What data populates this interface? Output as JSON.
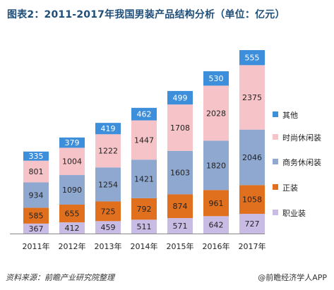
{
  "title": "图表2：2011-2017年我国男装产品结构分析（单位：亿元）",
  "footer": {
    "source": "资料来源：前瞻产业研究院整理",
    "brand": "@前瞻经济学人APP"
  },
  "colors": {
    "other": "#3d8fdc",
    "fashion_casual": "#f6c4c8",
    "business_casual": "#8fa8d0",
    "formal": "#e0701e",
    "workwear": "#c9bce4"
  },
  "chart_data": {
    "type": "bar",
    "stacked": true,
    "categories": [
      "2011年",
      "2012年",
      "2013年",
      "2014年",
      "2015年",
      "2016年",
      "2017年"
    ],
    "series": [
      {
        "name": "职业装",
        "key": "workwear",
        "values": [
          367,
          412,
          459,
          511,
          571,
          642,
          727
        ]
      },
      {
        "name": "正装",
        "key": "formal",
        "values": [
          585,
          655,
          725,
          792,
          874,
          961,
          1058
        ]
      },
      {
        "name": "商务休闲装",
        "key": "business_casual",
        "values": [
          934,
          1090,
          1254,
          1421,
          1603,
          1820,
          2046
        ]
      },
      {
        "name": "时尚休闲装",
        "key": "fashion_casual",
        "values": [
          801,
          1004,
          1222,
          1447,
          1708,
          2028,
          2375
        ]
      },
      {
        "name": "其他",
        "key": "other",
        "values": [
          335,
          379,
          419,
          462,
          499,
          530,
          555
        ]
      }
    ],
    "legend_position": "right",
    "grid": false
  }
}
